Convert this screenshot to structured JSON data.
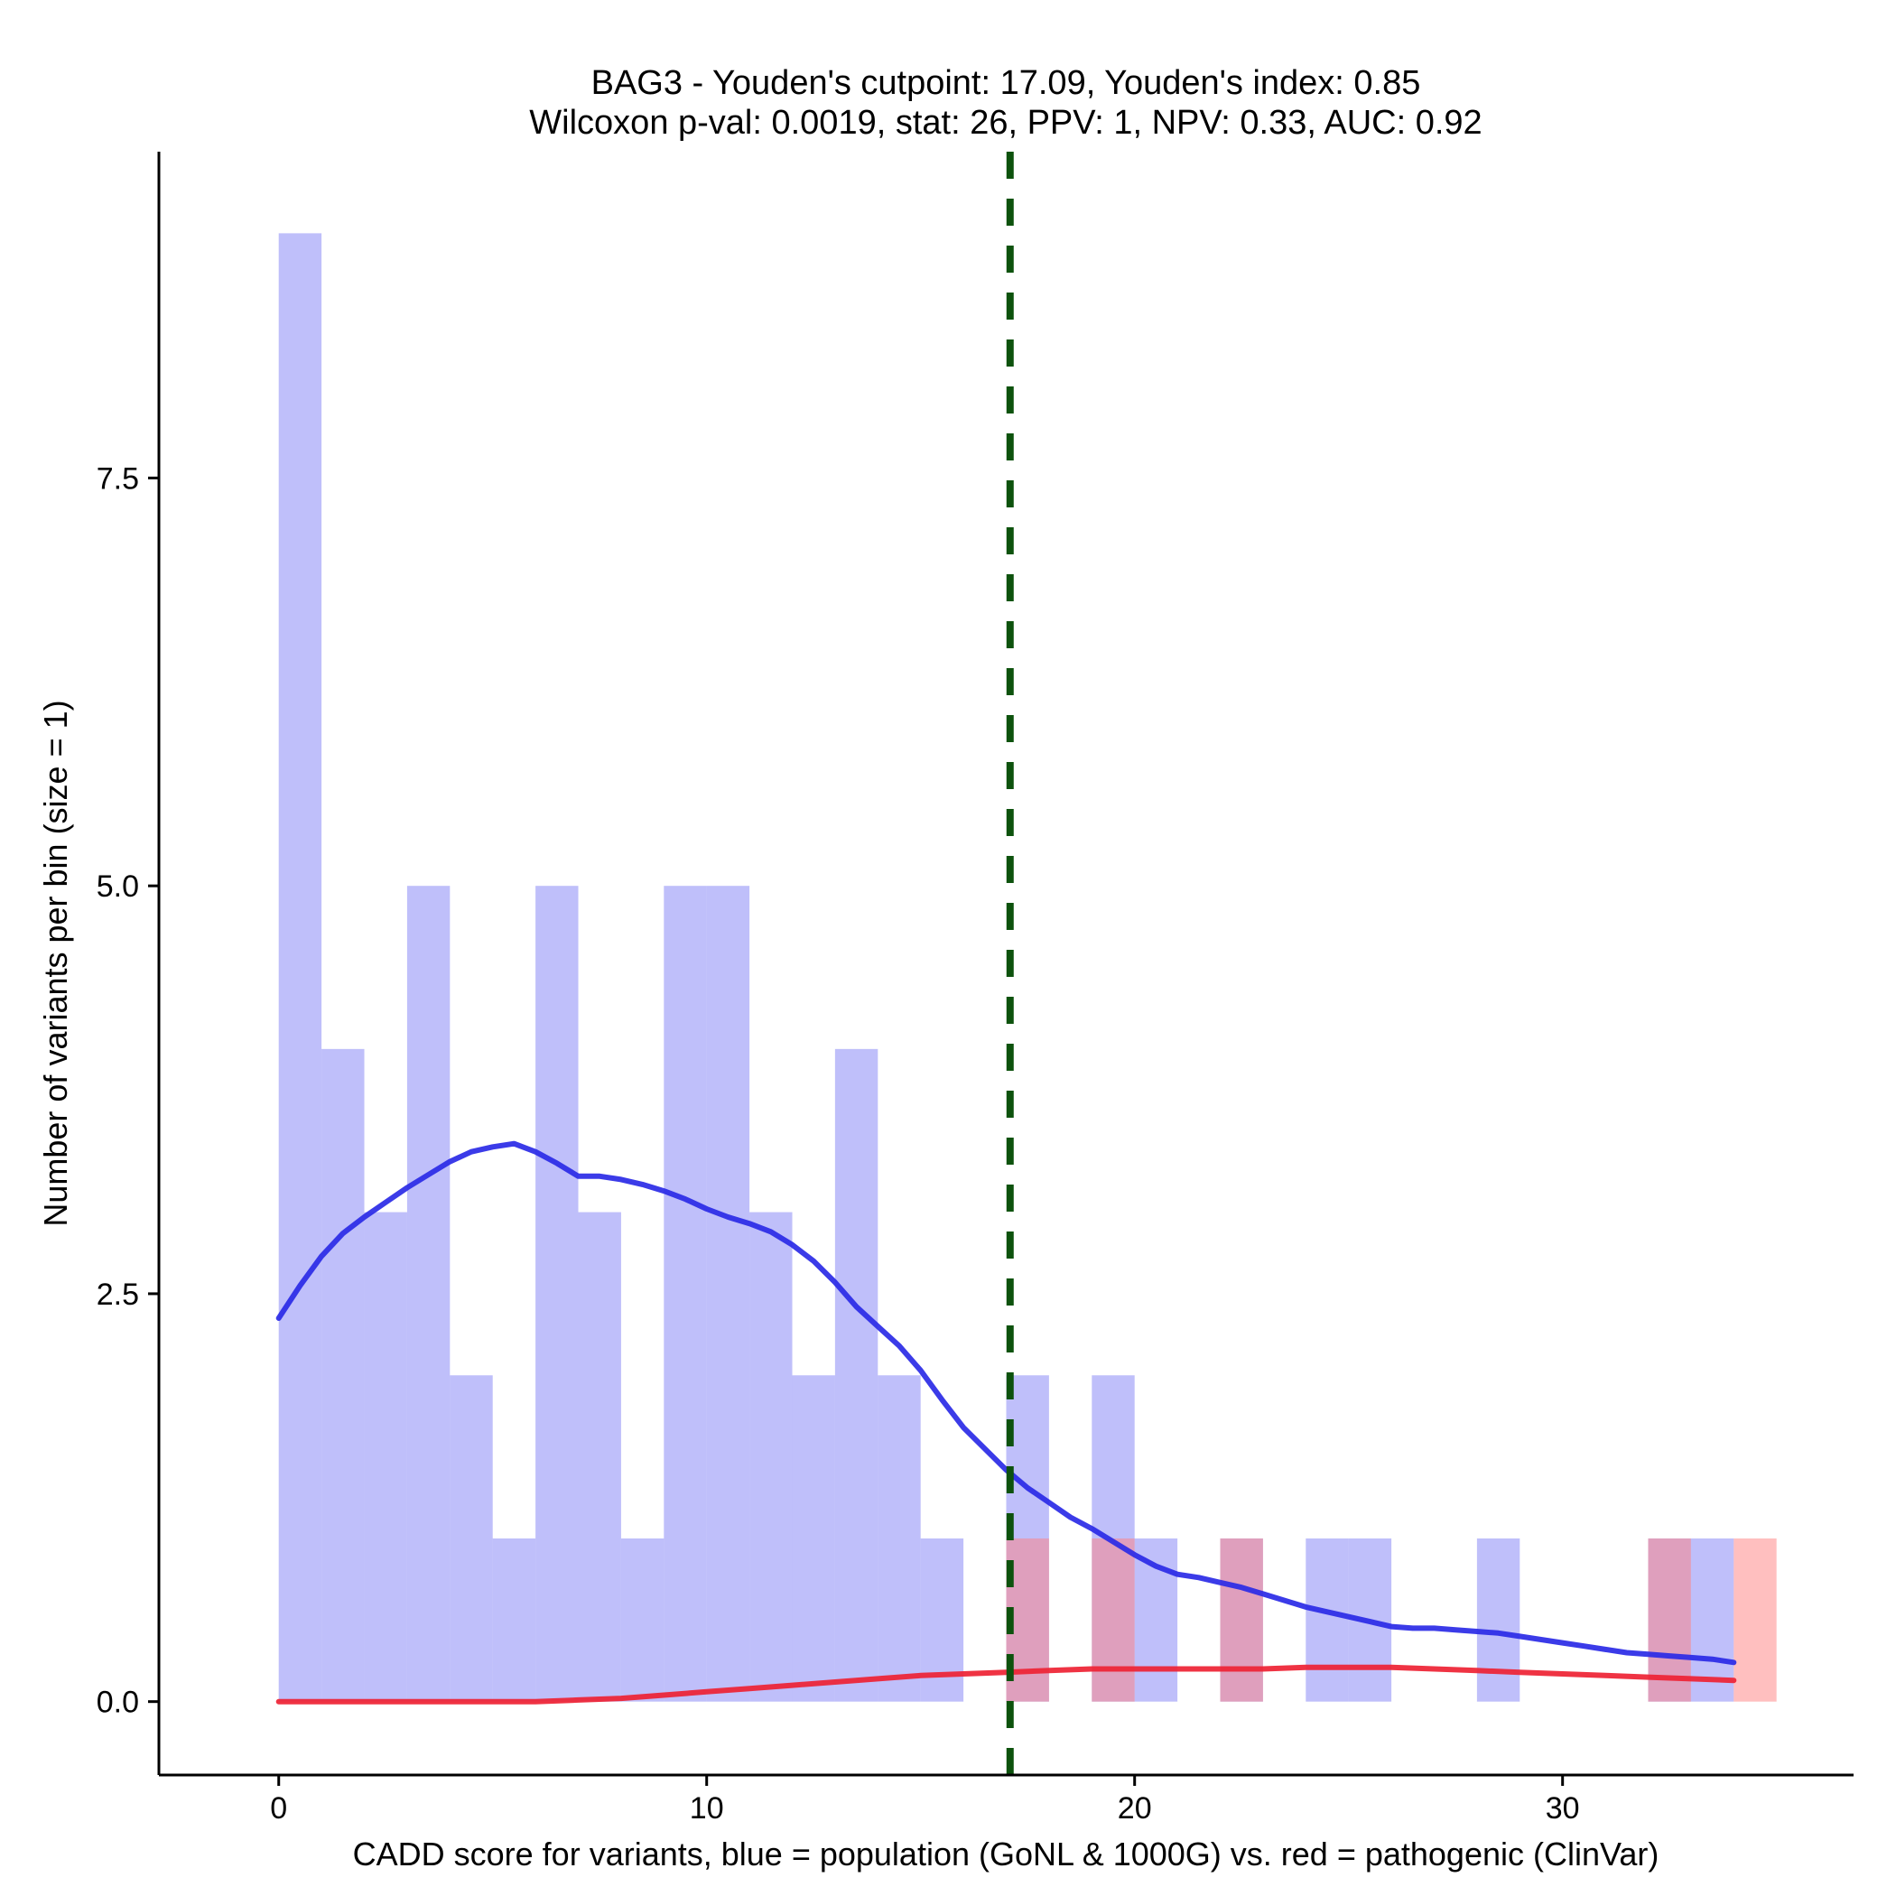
{
  "chart_data": {
    "type": "bar",
    "title": {
      "line1": "BAG3 - Youden's cutpoint: 17.09, Youden's index: 0.85",
      "line2": "Wilcoxon p-val: 0.0019, stat: 26, PPV: 1, NPV: 0.33, AUC: 0.92"
    },
    "xlabel": "CADD score for variants, blue = population (GoNL & 1000G) vs. red = pathogenic (ClinVar)",
    "ylabel": "Number of variants per bin (size = 1)",
    "xlim": [
      -2.8,
      36.8
    ],
    "ylim": [
      -0.45,
      9.5
    ],
    "x_ticks": [
      {
        "value": 0,
        "label": "0"
      },
      {
        "value": 10,
        "label": "10"
      },
      {
        "value": 20,
        "label": "20"
      },
      {
        "value": 30,
        "label": "30"
      }
    ],
    "y_ticks": [
      {
        "value": 0,
        "label": "0.0"
      },
      {
        "value": 2.5,
        "label": "2.5"
      },
      {
        "value": 5,
        "label": "5.0"
      },
      {
        "value": 7.5,
        "label": "7.5"
      }
    ],
    "bin_width": 1,
    "cutpoint": 17.09,
    "colors": {
      "population": "#8080f5",
      "pathogenic": "#ff8080",
      "population_density": "#2a2ae6",
      "pathogenic_density": "#ee2233",
      "cutpoint": "#0d520d"
    },
    "series": [
      {
        "name": "population",
        "bins": [
          {
            "start": 0,
            "count": 9
          },
          {
            "start": 1,
            "count": 4
          },
          {
            "start": 2,
            "count": 3
          },
          {
            "start": 3,
            "count": 5
          },
          {
            "start": 4,
            "count": 2
          },
          {
            "start": 5,
            "count": 1
          },
          {
            "start": 6,
            "count": 5
          },
          {
            "start": 7,
            "count": 3
          },
          {
            "start": 8,
            "count": 1
          },
          {
            "start": 9,
            "count": 5
          },
          {
            "start": 10,
            "count": 5
          },
          {
            "start": 11,
            "count": 3
          },
          {
            "start": 12,
            "count": 2
          },
          {
            "start": 13,
            "count": 4
          },
          {
            "start": 14,
            "count": 2
          },
          {
            "start": 15,
            "count": 1
          },
          {
            "start": 17,
            "count": 2
          },
          {
            "start": 19,
            "count": 2
          },
          {
            "start": 20,
            "count": 1
          },
          {
            "start": 22,
            "count": 1
          },
          {
            "start": 24,
            "count": 1
          },
          {
            "start": 25,
            "count": 1
          },
          {
            "start": 28,
            "count": 1
          },
          {
            "start": 32,
            "count": 1
          },
          {
            "start": 33,
            "count": 1
          }
        ]
      },
      {
        "name": "pathogenic",
        "bins": [
          {
            "start": 17,
            "count": 1
          },
          {
            "start": 19,
            "count": 1
          },
          {
            "start": 22,
            "count": 1
          },
          {
            "start": 32,
            "count": 1
          },
          {
            "start": 34,
            "count": 1
          }
        ]
      }
    ],
    "density_lines": [
      {
        "name": "population-density",
        "x": [
          0,
          0.5,
          1,
          1.5,
          2,
          2.5,
          3,
          3.5,
          4,
          4.5,
          5,
          5.5,
          6,
          6.5,
          7,
          7.5,
          8,
          8.5,
          9,
          9.5,
          10,
          10.5,
          11,
          11.5,
          12,
          12.5,
          13,
          13.5,
          14,
          14.5,
          15,
          15.5,
          16,
          16.5,
          17,
          17.5,
          18,
          18.5,
          19,
          19.5,
          20,
          20.5,
          21,
          21.5,
          22,
          22.5,
          23,
          23.5,
          24,
          24.5,
          25,
          25.5,
          26,
          26.5,
          27,
          27.5,
          28,
          28.5,
          29,
          29.5,
          30,
          30.5,
          31,
          31.5,
          32,
          32.5,
          33,
          33.5,
          34
        ],
        "y": [
          2.35,
          2.55,
          2.73,
          2.87,
          2.97,
          3.06,
          3.15,
          3.23,
          3.31,
          3.37,
          3.4,
          3.42,
          3.37,
          3.3,
          3.22,
          3.22,
          3.2,
          3.17,
          3.13,
          3.08,
          3.02,
          2.97,
          2.93,
          2.88,
          2.8,
          2.7,
          2.57,
          2.42,
          2.3,
          2.18,
          2.03,
          1.85,
          1.68,
          1.55,
          1.42,
          1.31,
          1.22,
          1.13,
          1.06,
          0.98,
          0.9,
          0.83,
          0.78,
          0.76,
          0.73,
          0.7,
          0.66,
          0.62,
          0.58,
          0.55,
          0.52,
          0.49,
          0.46,
          0.45,
          0.45,
          0.44,
          0.43,
          0.42,
          0.4,
          0.38,
          0.36,
          0.34,
          0.32,
          0.3,
          0.29,
          0.28,
          0.27,
          0.26,
          0.24
        ]
      },
      {
        "name": "pathogenic-density",
        "x": [
          0,
          2,
          4,
          6,
          7,
          8,
          9,
          10,
          11,
          12,
          13,
          14,
          15,
          16,
          17,
          18,
          19,
          20,
          21,
          22,
          23,
          24,
          25,
          26,
          27,
          28,
          29,
          30,
          31,
          32,
          33,
          34
        ],
        "y": [
          0,
          0,
          0,
          0,
          0.01,
          0.02,
          0.04,
          0.06,
          0.08,
          0.1,
          0.12,
          0.14,
          0.16,
          0.17,
          0.18,
          0.19,
          0.2,
          0.2,
          0.2,
          0.2,
          0.2,
          0.21,
          0.21,
          0.21,
          0.2,
          0.19,
          0.18,
          0.17,
          0.16,
          0.15,
          0.14,
          0.13
        ]
      }
    ]
  }
}
